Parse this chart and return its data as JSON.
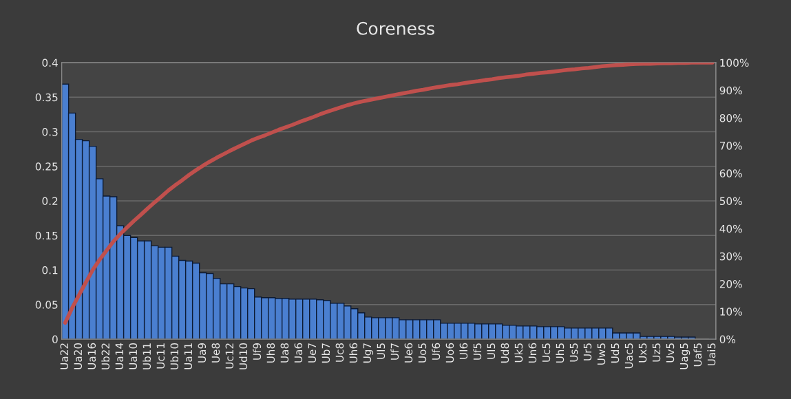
{
  "chart_data": {
    "type": "bar",
    "title": "Coreness",
    "categories": [
      "Ua22",
      null,
      "Ua20",
      null,
      "Ua16",
      null,
      "Ub22",
      null,
      "Ua14",
      null,
      "Ua10",
      null,
      "Ub11",
      null,
      "Uc11",
      null,
      "Ub10",
      null,
      "Ua11",
      null,
      "Ua9",
      null,
      "Ue8",
      null,
      "Uc12",
      null,
      "Ud10",
      null,
      "Uf9",
      null,
      "Uh8",
      null,
      "Ua8",
      null,
      "Ua6",
      null,
      "Ue7",
      null,
      "Ub7",
      null,
      "Uc8",
      null,
      "Uh6",
      null,
      "Ug7",
      null,
      "Ul5",
      null,
      "Uf7",
      null,
      "Ue6",
      null,
      "Uo5",
      null,
      "Uf6",
      null,
      "Uo6",
      null,
      "Ul6",
      null,
      "Uf5",
      null,
      "Ul5",
      null,
      "Ud8",
      null,
      "Uk5",
      null,
      "Un6",
      null,
      "Uc5",
      null,
      "Uh5",
      null,
      "Us5",
      null,
      "Ur5",
      null,
      "Uw5",
      null,
      "Ud5",
      null,
      "Uac5",
      null,
      "Ux5",
      null,
      "Uz5",
      null,
      "Uv5",
      null,
      "Uag5",
      null,
      "Uaf5",
      null,
      "Uai5"
    ],
    "series": [
      {
        "color": "#4a7fd0",
        "values": [
          0.369,
          0.327,
          0.289,
          0.287,
          0.279,
          0.232,
          0.207,
          0.206,
          0.164,
          0.15,
          0.147,
          0.142,
          0.142,
          0.135,
          0.133,
          0.133,
          0.12,
          0.114,
          0.113,
          0.11,
          0.096,
          0.095,
          0.088,
          0.08,
          0.08,
          0.076,
          0.074,
          0.073,
          0.061,
          0.06,
          0.06,
          0.059,
          0.059,
          0.058,
          0.058,
          0.058,
          0.058,
          0.057,
          0.056,
          0.052,
          0.052,
          0.048,
          0.044,
          0.038,
          0.032,
          0.031,
          0.031,
          0.031,
          0.031,
          0.028,
          0.028,
          0.028,
          0.028,
          0.028,
          0.028,
          0.023,
          0.023,
          0.023,
          0.023,
          0.023,
          0.022,
          0.022,
          0.022,
          0.022,
          0.02,
          0.02,
          0.019,
          0.019,
          0.019,
          0.018,
          0.018,
          0.018,
          0.018,
          0.016,
          0.016,
          0.016,
          0.016,
          0.016,
          0.016,
          0.016,
          0.009,
          0.009,
          0.009,
          0.009,
          0.004,
          0.004,
          0.004,
          0.004,
          0.004,
          0.003,
          0.003,
          0.003,
          null,
          null,
          0
        ]
      },
      {
        "type": "line",
        "axis": "y2",
        "color": "#c0504d",
        "values": [
          5.9,
          11.2,
          15.9,
          20.5,
          25.0,
          28.7,
          32.0,
          35.3,
          38.0,
          40.4,
          42.8,
          45.0,
          47.3,
          49.5,
          51.6,
          53.8,
          55.7,
          57.5,
          59.4,
          61.1,
          62.7,
          64.2,
          65.6,
          66.9,
          68.2,
          69.4,
          70.6,
          71.8,
          72.8,
          73.7,
          74.7,
          75.7,
          76.6,
          77.5,
          78.5,
          79.4,
          80.3,
          81.3,
          82.2,
          83.0,
          83.8,
          84.6,
          85.3,
          85.9,
          86.4,
          86.9,
          87.4,
          87.9,
          88.4,
          88.9,
          89.3,
          89.8,
          90.2,
          90.7,
          91.1,
          91.5,
          91.9,
          92.2,
          92.6,
          93.0,
          93.3,
          93.7,
          94.0,
          94.4,
          94.7,
          95.0,
          95.3,
          95.7,
          96.0,
          96.3,
          96.5,
          96.8,
          97.1,
          97.4,
          97.6,
          97.9,
          98.1,
          98.4,
          98.7,
          98.9,
          99.1,
          99.2,
          99.4,
          99.5,
          99.6,
          99.6,
          99.7,
          99.8,
          99.8,
          99.9,
          99.9,
          100.0,
          100.0,
          100.0,
          100.0
        ]
      }
    ],
    "ylim": [
      0,
      0.4
    ],
    "yticks": [
      0,
      0.05,
      0.1,
      0.15,
      0.2,
      0.25,
      0.3,
      0.35,
      0.4
    ],
    "y2lim": [
      0,
      100
    ],
    "y2ticks": [
      {
        "value": 0,
        "label": "0%"
      },
      {
        "value": 10,
        "label": "10%"
      },
      {
        "value": 20,
        "label": "20%"
      },
      {
        "value": 30,
        "label": "30%"
      },
      {
        "value": 40,
        "label": "40%"
      },
      {
        "value": 50,
        "label": "50%"
      },
      {
        "value": 60,
        "label": "60%"
      },
      {
        "value": 70,
        "label": "70%"
      },
      {
        "value": 80,
        "label": "80%"
      },
      {
        "value": 90,
        "label": "90%"
      },
      {
        "value": 100,
        "label": "100%"
      }
    ],
    "grid": "y",
    "marker": "none",
    "line_style": "solid"
  }
}
